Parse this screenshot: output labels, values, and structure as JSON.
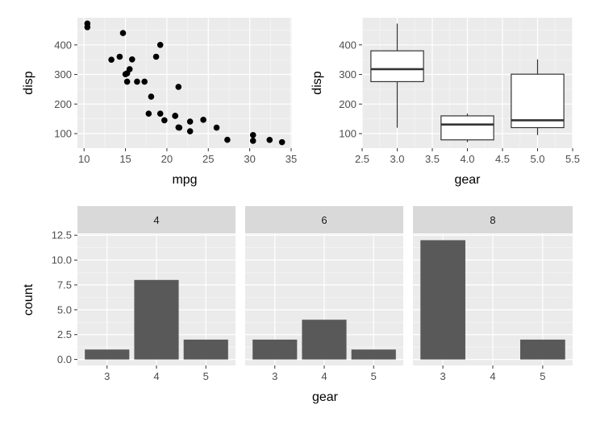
{
  "colors": {
    "panel_bg": "#ebebeb",
    "grid_major": "#ffffff",
    "grid_minor": "#f5f5f5",
    "strip_bg": "#d9d9d9",
    "bar_fill": "#595959",
    "point": "#000000",
    "box_line": "#333333",
    "tick": "#333333"
  },
  "chart_data": [
    {
      "id": "scatter",
      "type": "scatter",
      "title": "",
      "xlabel": "mpg",
      "ylabel": "disp",
      "xlim": [
        9.2,
        35.1
      ],
      "ylim": [
        51,
        492
      ],
      "xticks": [
        10,
        15,
        20,
        25,
        30,
        35
      ],
      "yticks": [
        100,
        200,
        300,
        400
      ],
      "x": [
        21.0,
        21.0,
        22.8,
        21.4,
        18.7,
        18.1,
        14.3,
        24.4,
        22.8,
        19.2,
        17.8,
        16.4,
        17.3,
        15.2,
        10.4,
        10.4,
        14.7,
        32.4,
        30.4,
        33.9,
        21.5,
        15.5,
        15.2,
        13.3,
        19.2,
        27.3,
        26.0,
        30.4,
        15.8,
        19.7,
        15.0,
        21.4
      ],
      "y": [
        160,
        160,
        108,
        258,
        360,
        225,
        360,
        146.7,
        140.8,
        167.6,
        167.6,
        275.8,
        275.8,
        275.8,
        472,
        460,
        440,
        78.7,
        75.7,
        71.1,
        120.1,
        318,
        304,
        350,
        400,
        79,
        120.3,
        95.1,
        351,
        145,
        301,
        121
      ]
    },
    {
      "id": "boxplot",
      "type": "box",
      "title": "",
      "xlabel": "gear",
      "ylabel": "disp",
      "xlim": [
        2.5,
        5.5
      ],
      "ylim": [
        51,
        492
      ],
      "xticks": [
        "2.5",
        "3.0",
        "3.5",
        "4.0",
        "4.5",
        "5.0",
        "5.5"
      ],
      "yticks": [
        100,
        200,
        300,
        400
      ],
      "boxes": [
        {
          "x": 3,
          "whisker_low": 120.1,
          "q1": 275.8,
          "median": 318,
          "q3": 380,
          "whisker_high": 472
        },
        {
          "x": 4,
          "whisker_low": 71.1,
          "q1": 78.9,
          "median": 130.9,
          "q3": 160,
          "whisker_high": 167.6
        },
        {
          "x": 5,
          "whisker_low": 95.1,
          "q1": 120.3,
          "median": 145,
          "q3": 301,
          "whisker_high": 351
        }
      ]
    },
    {
      "id": "facet_bar",
      "type": "bar",
      "title": "",
      "xlabel": "gear",
      "ylabel": "count",
      "ylim": [
        -0.6,
        12.6
      ],
      "yticks": [
        "0.0",
        "2.5",
        "5.0",
        "7.5",
        "10.0",
        "12.5"
      ],
      "categories": [
        "3",
        "4",
        "5"
      ],
      "facets": [
        {
          "label": "4",
          "values": [
            1,
            8,
            2
          ]
        },
        {
          "label": "6",
          "values": [
            2,
            4,
            1
          ]
        },
        {
          "label": "8",
          "values": [
            12,
            0,
            2
          ]
        }
      ]
    }
  ]
}
